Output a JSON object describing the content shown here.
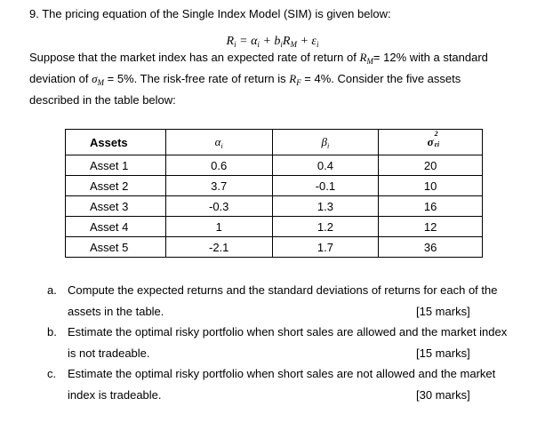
{
  "question": {
    "intro": "9. The pricing equation of the Single Index Model (SIM) is given below:",
    "equation": "R<sub>i</sub> = α<sub>i</sub> + b<sub>i</sub>R<sub>M</sub> + ε<sub>i</sub>",
    "para1_line1_a": "Suppose that the market index has an expected rate of return of ",
    "para1_line1_sym": "R<sub>M</sub>",
    "para1_line1_b": "= 12% with a standard",
    "para1_line2_a": "deviation of ",
    "para1_line2_sym": "σ<sub>M</sub>",
    "para1_line2_b": " = 5%. The risk-free rate of return is ",
    "para1_line2_sym2": "R<sub>F</sub>",
    "para1_line2_c": " = 4%. Consider the five assets",
    "para1_line3": "described in the table below:"
  },
  "table": {
    "headers": {
      "assets": "Assets",
      "alpha": "α<sub>i</sub>",
      "beta": "β<sub>i</sub>",
      "sigma_base": "σ",
      "sigma_sup": "2",
      "sigma_sub": "εi"
    },
    "rows": [
      {
        "name": "Asset 1",
        "alpha": "0.6",
        "beta": "0.4",
        "var": "20"
      },
      {
        "name": "Asset 2",
        "alpha": "3.7",
        "beta": "-0.1",
        "var": "10"
      },
      {
        "name": "Asset 3",
        "alpha": "-0.3",
        "beta": "1.3",
        "var": "16"
      },
      {
        "name": "Asset 4",
        "alpha": "1",
        "beta": "1.2",
        "var": "12"
      },
      {
        "name": "Asset 5",
        "alpha": "-2.1",
        "beta": "1.7",
        "var": "36"
      }
    ]
  },
  "parts": {
    "a_label": "a.",
    "a_line1": "Compute the expected returns and the standard deviations of returns for each of the",
    "a_line2": "assets in the table.",
    "a_marks": "[15 marks]",
    "b_label": "b.",
    "b_line1": "Estimate the optimal risky portfolio when short sales are allowed and the market index",
    "b_line2": "is not tradeable.",
    "b_marks": "[15 marks]",
    "c_label": "c.",
    "c_line1": "Estimate the optimal risky portfolio when short sales are not allowed and the market",
    "c_line2": "index is tradeable.",
    "c_marks": "[30 marks]"
  }
}
